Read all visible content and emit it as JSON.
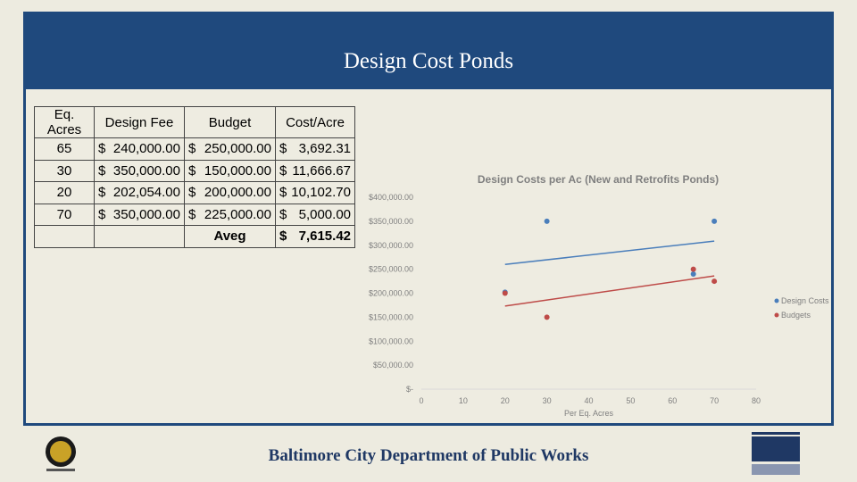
{
  "title": "Design Cost Ponds",
  "table": {
    "header": [
      "Eq. Acres",
      "Design Fee",
      "Budget",
      "Cost/Acre"
    ],
    "rows": [
      [
        "65",
        {
          "currency": "$",
          "amount": "240,000.00"
        },
        {
          "currency": "$",
          "amount": "250,000.00"
        },
        {
          "currency": "$",
          "amount": "3,692.31"
        }
      ],
      [
        "30",
        {
          "currency": "$",
          "amount": "350,000.00"
        },
        {
          "currency": "$",
          "amount": "150,000.00"
        },
        {
          "currency": "$",
          "amount": "11,666.67"
        }
      ],
      [
        "20",
        {
          "currency": "$",
          "amount": "202,054.00"
        },
        {
          "currency": "$",
          "amount": "200,000.00"
        },
        {
          "currency": "$",
          "amount": "10,102.70"
        }
      ],
      [
        "70",
        {
          "currency": "$",
          "amount": "350,000.00"
        },
        {
          "currency": "$",
          "amount": "225,000.00"
        },
        {
          "currency": "$",
          "amount": "5,000.00"
        }
      ],
      [
        null,
        null,
        "Aveg",
        {
          "currency": "$",
          "amount": "7,615.42"
        }
      ]
    ]
  },
  "chart_data": {
    "type": "scatter",
    "title": "Design Costs per Ac (New and Retrofits Ponds)",
    "x_label": "Per Eq. Acres",
    "series": [
      {
        "name": "Design Costs",
        "color": "#4a7ebb",
        "x": [
          65,
          30,
          20,
          70
        ],
        "values": [
          240000,
          350000,
          202054,
          350000
        ]
      },
      {
        "name": "Budgets",
        "color": "#be4b48",
        "x": [
          65,
          30,
          20,
          70
        ],
        "values": [
          250000,
          150000,
          200000,
          225000
        ]
      }
    ],
    "trendline": true,
    "xlim": [
      0,
      80
    ],
    "xticks": [
      0,
      10,
      20,
      30,
      40,
      50,
      60,
      70,
      80
    ],
    "ylim": [
      0,
      400000
    ],
    "yticks": [
      {
        "value": 0,
        "label": "$-"
      },
      {
        "value": 50000,
        "label": "$50,000.00"
      },
      {
        "value": 100000,
        "label": "$100,000.00"
      },
      {
        "value": 150000,
        "label": "$150,000.00"
      },
      {
        "value": 200000,
        "label": "$200,000.00"
      },
      {
        "value": 250000,
        "label": "$250,000.00"
      },
      {
        "value": 300000,
        "label": "$300,000.00"
      },
      {
        "value": 350000,
        "label": "$350,000.00"
      },
      {
        "value": 400000,
        "label": "$400,000.00"
      }
    ],
    "grid": false,
    "legend": "right"
  },
  "footer": "Baltimore City Department of Public Works"
}
